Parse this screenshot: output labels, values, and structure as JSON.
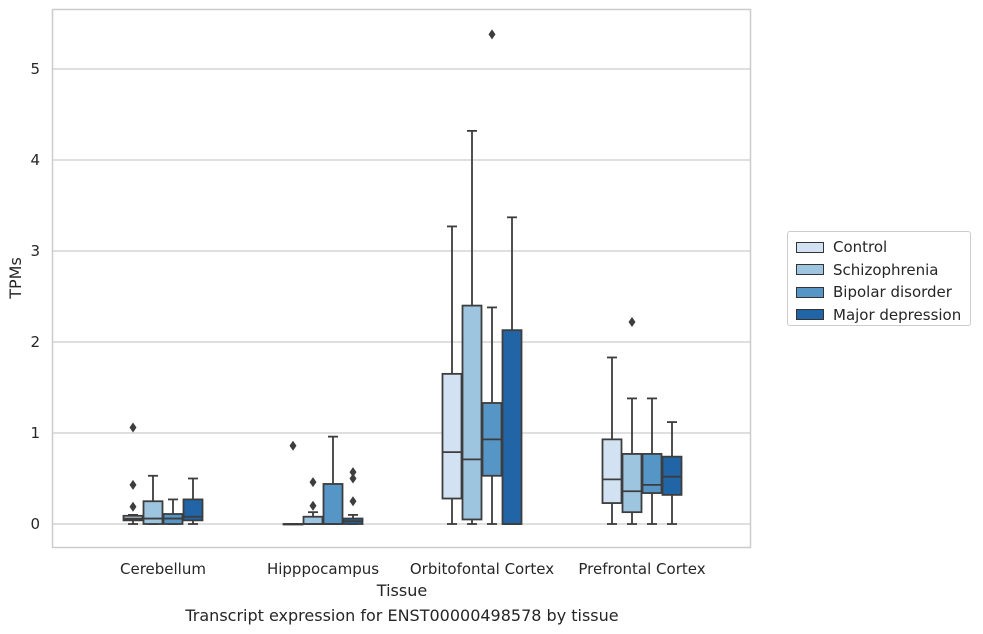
{
  "chart_data": {
    "type": "boxplot",
    "xlabel": "Tissue",
    "ylabel": "TPMs",
    "caption": "Transcript expression for ENST00000498578 by tissue",
    "ylim": [
      -0.25,
      5.65
    ],
    "yticks": [
      0,
      1,
      2,
      3,
      4,
      5
    ],
    "grid": "horizontal",
    "legend_position": "right",
    "categories": [
      "Cerebellum",
      "Hipppocampus",
      "Orbitofontal Cortex",
      "Prefrontal Cortex"
    ],
    "series": [
      {
        "name": "Control",
        "color": "#d2e2f2",
        "boxes": [
          {
            "whislo": 0.0,
            "q1": 0.04,
            "med": 0.06,
            "q3": 0.09,
            "whishi": 0.1,
            "fliers": [
              0.19,
              0.43,
              1.06
            ]
          },
          {
            "whislo": 0.0,
            "q1": 0.0,
            "med": 0.0,
            "q3": 0.0,
            "whishi": 0.0,
            "fliers": [
              0.86
            ]
          },
          {
            "whislo": 0.0,
            "q1": 0.28,
            "med": 0.79,
            "q3": 1.65,
            "whishi": 3.27,
            "fliers": []
          },
          {
            "whislo": 0.0,
            "q1": 0.23,
            "med": 0.49,
            "q3": 0.93,
            "whishi": 1.83,
            "fliers": []
          }
        ]
      },
      {
        "name": "Schizophrenia",
        "color": "#9dc5e0",
        "boxes": [
          {
            "whislo": 0.0,
            "q1": 0.0,
            "med": 0.06,
            "q3": 0.25,
            "whishi": 0.53,
            "fliers": []
          },
          {
            "whislo": 0.0,
            "q1": 0.0,
            "med": 0.0,
            "q3": 0.08,
            "whishi": 0.13,
            "fliers": [
              0.2,
              0.46
            ]
          },
          {
            "whislo": 0.0,
            "q1": 0.05,
            "med": 0.71,
            "q3": 2.4,
            "whishi": 4.32,
            "fliers": []
          },
          {
            "whislo": 0.0,
            "q1": 0.13,
            "med": 0.36,
            "q3": 0.77,
            "whishi": 1.38,
            "fliers": [
              2.22
            ]
          }
        ]
      },
      {
        "name": "Bipolar disorder",
        "color": "#5596c6",
        "boxes": [
          {
            "whislo": 0.0,
            "q1": 0.0,
            "med": 0.06,
            "q3": 0.11,
            "whishi": 0.27,
            "fliers": []
          },
          {
            "whislo": 0.0,
            "q1": 0.0,
            "med": 0.0,
            "q3": 0.44,
            "whishi": 0.96,
            "fliers": []
          },
          {
            "whislo": 0.0,
            "q1": 0.53,
            "med": 0.93,
            "q3": 1.33,
            "whishi": 2.38,
            "fliers": [
              5.38
            ]
          },
          {
            "whislo": 0.0,
            "q1": 0.34,
            "med": 0.43,
            "q3": 0.77,
            "whishi": 1.38,
            "fliers": []
          }
        ]
      },
      {
        "name": "Major depression",
        "color": "#2165a7",
        "boxes": [
          {
            "whislo": 0.0,
            "q1": 0.04,
            "med": 0.08,
            "q3": 0.27,
            "whishi": 0.5,
            "fliers": []
          },
          {
            "whislo": 0.0,
            "q1": 0.0,
            "med": 0.03,
            "q3": 0.06,
            "whishi": 0.1,
            "fliers": [
              0.25,
              0.5,
              0.57
            ]
          },
          {
            "whislo": 0.0,
            "q1": 0.0,
            "med": 0.0,
            "q3": 2.13,
            "whishi": 3.37,
            "fliers": []
          },
          {
            "whislo": 0.0,
            "q1": 0.32,
            "med": 0.52,
            "q3": 0.74,
            "whishi": 1.12,
            "fliers": []
          }
        ]
      }
    ]
  }
}
